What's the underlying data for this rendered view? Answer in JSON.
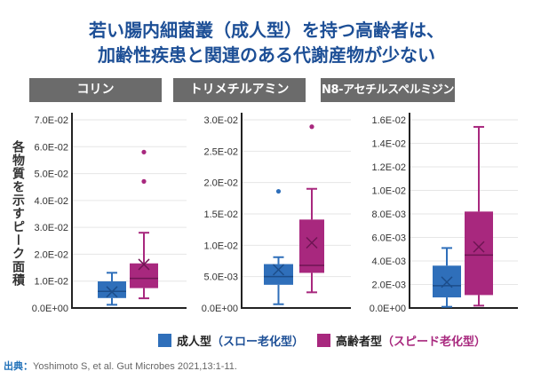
{
  "title": [
    "若い腸内細菌叢（成人型）を持つ高齢者は、",
    "加齢性疾患と関連のある代謝産物が少ない"
  ],
  "y_axis_label": "各物質を示すピーク面積",
  "colors": {
    "adult": "#2f6fba",
    "elderly": "#a8287e",
    "title": "#1d4f96",
    "header_bg": "#6b6b6b"
  },
  "legend": [
    {
      "label": "成人型",
      "note": "（スロー老化型）",
      "color": "#2f6fba"
    },
    {
      "label": "高齢者型",
      "note": "（スピード老化型）",
      "color": "#a8287e"
    }
  ],
  "source": {
    "label": "出典：",
    "text": "Yoshimoto S, et al. Gut Microbes 2021,13:1-11."
  },
  "chart_data": [
    {
      "type": "box",
      "title": "コリン",
      "ylim": [
        0,
        0.07
      ],
      "ticks": [
        "0.0E+00",
        "1.0E-02",
        "2.0E-02",
        "3.0E-02",
        "4.0E-02",
        "5.0E-02",
        "6.0E-02",
        "7.0E-02"
      ],
      "tick_values": [
        0,
        0.01,
        0.02,
        0.03,
        0.04,
        0.05,
        0.06,
        0.07
      ],
      "grid": true,
      "series": [
        {
          "name": "成人型",
          "min": 0.0012,
          "q1": 0.0037,
          "median": 0.0062,
          "mean": 0.006,
          "q3": 0.0099,
          "max": 0.0131,
          "outliers": []
        },
        {
          "name": "高齢者型",
          "min": 0.0036,
          "q1": 0.0074,
          "median": 0.011,
          "mean": 0.0162,
          "q3": 0.0166,
          "max": 0.028,
          "outliers": [
            0.0471,
            0.058
          ]
        }
      ]
    },
    {
      "type": "box",
      "title": "トリメチルアミン",
      "ylim": [
        0,
        0.03
      ],
      "ticks": [
        "0.0E+00",
        "5.0E-03",
        "1.0E-02",
        "1.5E-02",
        "2.0E-02",
        "2.5E-02",
        "3.0E-02"
      ],
      "tick_values": [
        0,
        0.005,
        0.01,
        0.015,
        0.02,
        0.025,
        0.03
      ],
      "grid": true,
      "series": [
        {
          "name": "成人型",
          "min": 0.0006,
          "q1": 0.0037,
          "median": 0.005,
          "mean": 0.0061,
          "q3": 0.007,
          "max": 0.0081,
          "outliers": [
            0.0186
          ]
        },
        {
          "name": "高齢者型",
          "min": 0.0025,
          "q1": 0.0056,
          "median": 0.0068,
          "mean": 0.0104,
          "q3": 0.0141,
          "max": 0.019,
          "outliers": [
            0.0289
          ]
        }
      ]
    },
    {
      "type": "box",
      "title": "N8-アセチルスペルミジン",
      "ylim": [
        0,
        0.016
      ],
      "ticks": [
        "0.0E+00",
        "2.0E-03",
        "4.0E-03",
        "6.0E-03",
        "8.0E-03",
        "1.0E-02",
        "1.2E-02",
        "1.4E-02",
        "1.6E-02"
      ],
      "tick_values": [
        0,
        0.002,
        0.004,
        0.006,
        0.008,
        0.01,
        0.012,
        0.014,
        0.016
      ],
      "grid": true,
      "series": [
        {
          "name": "成人型",
          "min": 0.0001,
          "q1": 0.0009,
          "median": 0.0019,
          "mean": 0.0022,
          "q3": 0.0036,
          "max": 0.0051,
          "outliers": []
        },
        {
          "name": "高齢者型",
          "min": 0.0002,
          "q1": 0.0011,
          "median": 0.0045,
          "mean": 0.0052,
          "q3": 0.0082,
          "max": 0.0154,
          "outliers": []
        }
      ]
    }
  ]
}
